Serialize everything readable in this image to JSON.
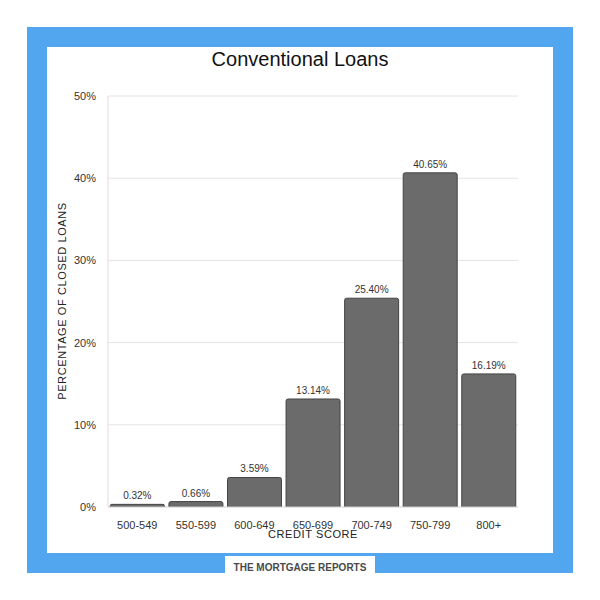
{
  "chart_data": {
    "type": "bar",
    "title": "Conventional Loans",
    "x_label": "CREDIT SCORE",
    "y_label": "PERCENTAGE OF CLOSED LOANS",
    "annotations": [
      "THE MORTGAGE REPORTS"
    ],
    "categories": [
      "500-549",
      "550-599",
      "600-649",
      "650-699",
      "700-749",
      "750-799",
      "800+"
    ],
    "values": [
      0.32,
      0.66,
      3.59,
      13.14,
      25.4,
      40.65,
      16.19
    ],
    "value_labels": [
      "0.32%",
      "0.66%",
      "3.59%",
      "13.14%",
      "25.40%",
      "40.65%",
      "16.19%"
    ],
    "data_labels": true,
    "color": "#6b6b6b",
    "ylim": [
      0,
      50
    ],
    "yticks": [
      {
        "value": 0,
        "label": "0%"
      },
      {
        "value": 10,
        "label": "10%"
      },
      {
        "value": 20,
        "label": "20%"
      },
      {
        "value": 30,
        "label": "30%"
      },
      {
        "value": 40,
        "label": "40%"
      },
      {
        "value": 50,
        "label": "50%"
      }
    ],
    "grid": true
  }
}
